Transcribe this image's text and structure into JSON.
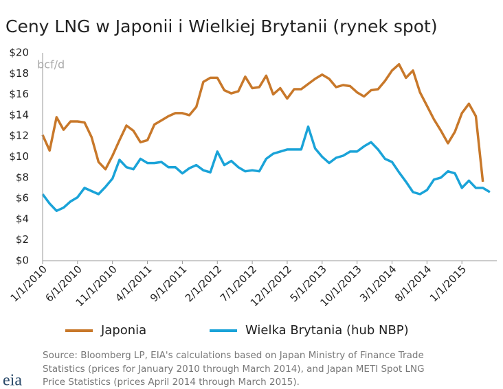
{
  "chart_data": {
    "type": "line",
    "title": "Ceny LNG w Japonii i Wielkiej Brytanii (rynek spot)",
    "y_unit_note": "bcf/d",
    "categories": [
      "1/1/2010",
      null,
      null,
      null,
      null,
      "6/1/2010",
      null,
      null,
      null,
      null,
      "11/1/2010",
      null,
      null,
      null,
      null,
      "4/1/2011",
      null,
      null,
      null,
      null,
      "9/1/2011",
      null,
      null,
      null,
      null,
      "2/1/2012",
      null,
      null,
      null,
      null,
      "7/1/2012",
      null,
      null,
      null,
      null,
      "12/1/2012",
      null,
      null,
      null,
      null,
      "5/1/2013",
      null,
      null,
      null,
      null,
      "10/1/2013",
      null,
      null,
      null,
      null,
      "3/1/2014",
      null,
      null,
      null,
      null,
      "8/1/2014",
      null,
      null,
      null,
      null,
      "1/1/2015",
      null,
      null,
      null,
      null
    ],
    "series": [
      {
        "name": "Japonia",
        "color": "#c8782a",
        "values": [
          12.1,
          10.6,
          13.8,
          12.6,
          13.4,
          13.4,
          13.3,
          11.9,
          9.5,
          8.8,
          10.1,
          11.6,
          13.0,
          12.5,
          11.4,
          11.6,
          13.1,
          13.5,
          13.9,
          14.2,
          14.2,
          14.0,
          14.8,
          17.2,
          17.6,
          17.6,
          16.4,
          16.1,
          16.3,
          17.7,
          16.6,
          16.7,
          17.8,
          16.0,
          16.6,
          15.6,
          16.5,
          16.5,
          17.0,
          17.5,
          17.9,
          17.5,
          16.7,
          16.9,
          16.8,
          16.2,
          15.8,
          16.4,
          16.5,
          17.3,
          18.3,
          18.9,
          17.6,
          18.3,
          16.2,
          14.9,
          13.6,
          12.5,
          11.3,
          12.4,
          14.2,
          15.1,
          13.9,
          7.6,
          null
        ]
      },
      {
        "name": "Wielka Brytania (hub NBP)",
        "color": "#1aa3d8",
        "values": [
          6.4,
          5.5,
          4.8,
          5.1,
          5.7,
          6.1,
          7.0,
          6.7,
          6.4,
          7.1,
          7.9,
          9.7,
          9.0,
          8.8,
          9.8,
          9.4,
          9.4,
          9.5,
          9.0,
          9.0,
          8.4,
          8.9,
          9.2,
          8.7,
          8.5,
          10.5,
          9.2,
          9.6,
          9.0,
          8.6,
          8.7,
          8.6,
          9.8,
          10.3,
          10.5,
          10.7,
          10.7,
          10.7,
          12.9,
          10.8,
          10.0,
          9.4,
          9.9,
          10.1,
          10.5,
          10.5,
          11.0,
          11.4,
          10.7,
          9.8,
          9.5,
          8.5,
          7.6,
          6.6,
          6.4,
          6.8,
          7.8,
          8.0,
          8.6,
          8.4,
          7.0,
          7.7,
          7.0,
          7.0,
          6.6
        ]
      }
    ],
    "ylim": [
      0,
      20
    ],
    "yticks": [
      {
        "value": 0,
        "label": "$0"
      },
      {
        "value": 2,
        "label": "$2"
      },
      {
        "value": 4,
        "label": "$4"
      },
      {
        "value": 6,
        "label": "$6"
      },
      {
        "value": 8,
        "label": "$8"
      },
      {
        "value": 10,
        "label": "$10"
      },
      {
        "value": 12,
        "label": "$12"
      },
      {
        "value": 14,
        "label": "$14"
      },
      {
        "value": 16,
        "label": "$16"
      },
      {
        "value": 18,
        "label": "$18"
      },
      {
        "value": 20,
        "label": "$20"
      }
    ],
    "grid": false,
    "legend": "bottom",
    "source": [
      "Source:  Bloomberg LP, EIA's calculations based on Japan Ministry of Finance Trade",
      "Statistics (prices for January 2010 through March 2014), and Japan METI Spot LNG",
      "Price Statistics (prices April 2014 through March 2015)."
    ],
    "logo": "eia"
  }
}
